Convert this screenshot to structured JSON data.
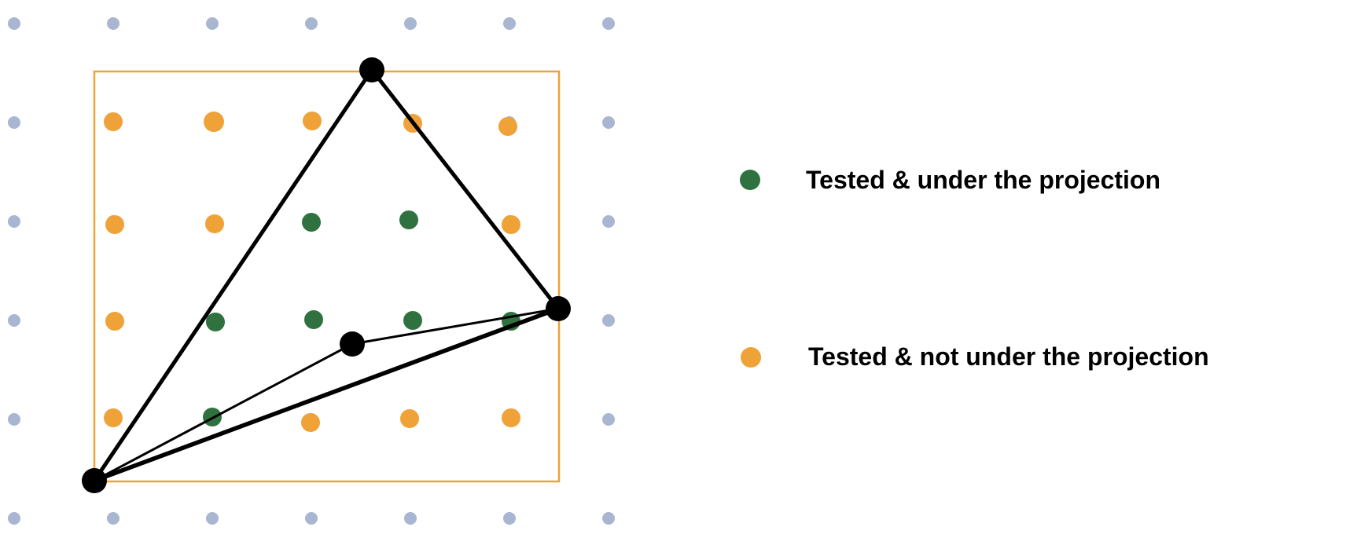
{
  "colors": {
    "grid_dot": "#a9b6d1",
    "tested_under": "#2f7240",
    "tested_not_under": "#eea238",
    "bounding_box": "#eea238",
    "vertex": "#000000",
    "edge": "#000000"
  },
  "grid": {
    "columns": 7,
    "rows": 6
  },
  "legend": {
    "items": [
      {
        "label": "Tested & under the projection",
        "kind": "tested_under"
      },
      {
        "label": "Tested & not under the projection",
        "kind": "tested_not_under"
      }
    ]
  }
}
